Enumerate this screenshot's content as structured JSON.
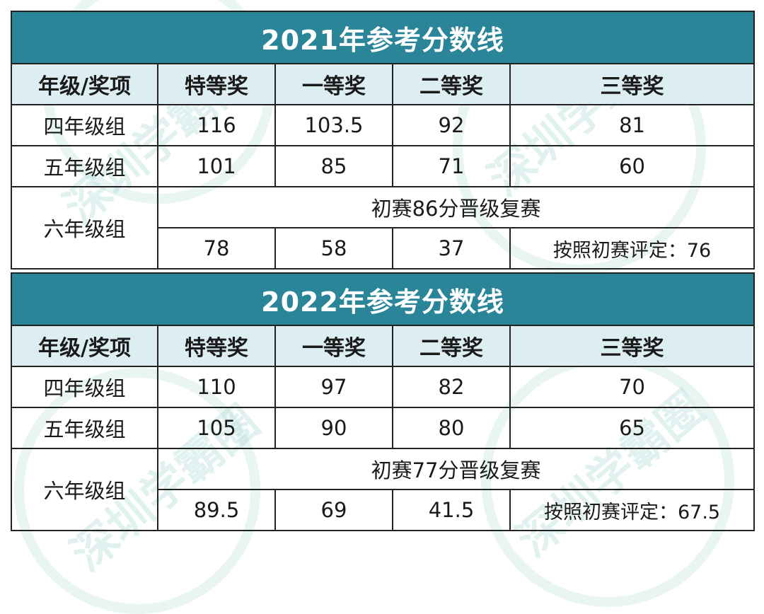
{
  "tables": [
    {
      "title": "2021年参考分数线",
      "headers": [
        "年级/奖项",
        "特等奖",
        "一等奖",
        "二等奖",
        "三等奖"
      ],
      "rows": [
        {
          "grade": "四年级组",
          "values": [
            "116",
            "103.5",
            "92",
            "81"
          ]
        },
        {
          "grade": "五年级组",
          "values": [
            "101",
            "85",
            "71",
            "60"
          ]
        }
      ],
      "grade6": {
        "grade": "六年级组",
        "note": "初赛86分晋级复赛",
        "values": [
          "78",
          "58",
          "37",
          "按照初赛评定：76"
        ]
      }
    },
    {
      "title": "2022年参考分数线",
      "headers": [
        "年级/奖项",
        "特等奖",
        "一等奖",
        "二等奖",
        "三等奖"
      ],
      "rows": [
        {
          "grade": "四年级组",
          "values": [
            "110",
            "97",
            "82",
            "70"
          ]
        },
        {
          "grade": "五年级组",
          "values": [
            "105",
            "90",
            "80",
            "65"
          ]
        }
      ],
      "grade6": {
        "grade": "六年级组",
        "note": "初赛77分晋级复赛",
        "values": [
          "89.5",
          "69",
          "41.5",
          "按照初赛评定：67.5"
        ]
      }
    }
  ],
  "watermark": "深圳学霸圈",
  "colors": {
    "title_bg": "#2a8599",
    "header_bg": "#ddeef2",
    "border": "#222222"
  }
}
